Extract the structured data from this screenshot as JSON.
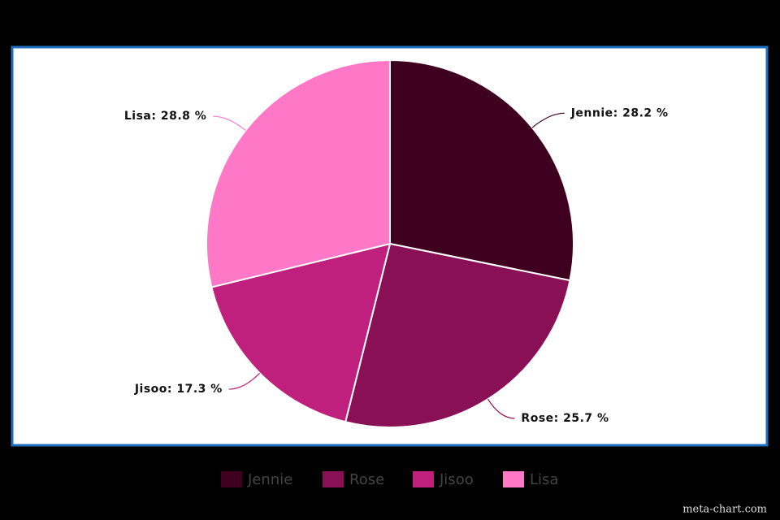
{
  "chart_data": {
    "type": "pie",
    "categories": [
      "Jennie",
      "Rose",
      "Jisoo",
      "Lisa"
    ],
    "values": [
      28.2,
      25.7,
      17.3,
      28.8
    ],
    "value_labels": [
      "Jennie: 28.2 %",
      "Rose: 25.7 %",
      "Jisoo: 17.3 %",
      "Lisa: 28.8 %"
    ],
    "colors": [
      "#3f0020",
      "#8a1056",
      "#c0207d",
      "#ff77c7"
    ],
    "legend": "bottom",
    "watermark": "meta-chart.com"
  }
}
